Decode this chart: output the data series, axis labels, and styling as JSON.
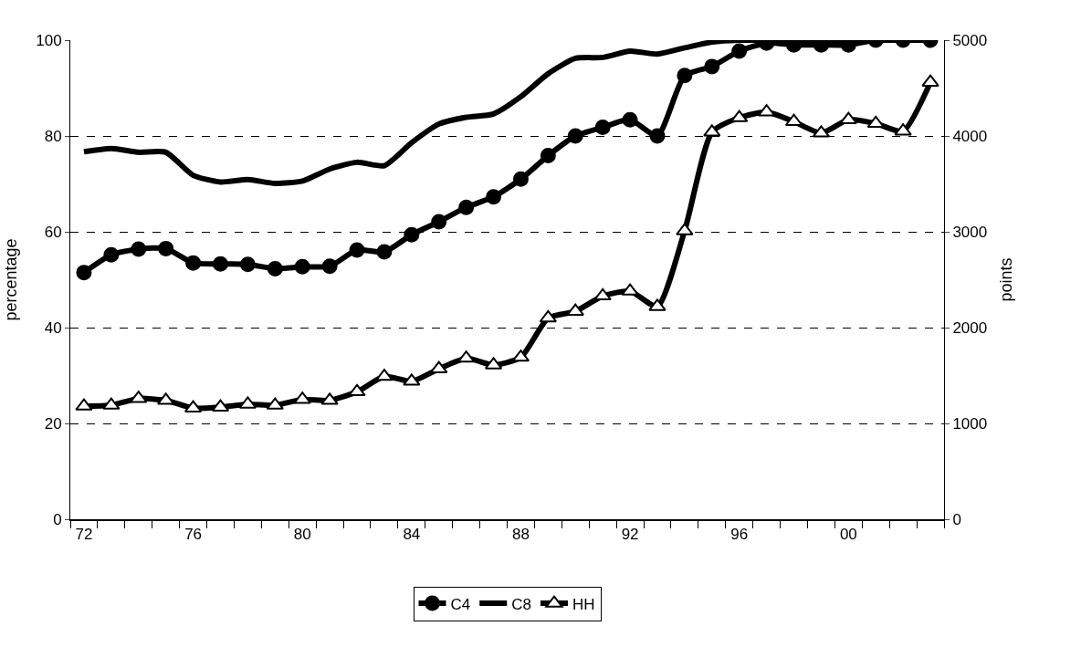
{
  "chart_data": {
    "type": "line",
    "categories": [
      "72",
      null,
      null,
      null,
      "76",
      null,
      null,
      null,
      "80",
      null,
      null,
      null,
      "84",
      null,
      null,
      null,
      "88",
      null,
      null,
      null,
      "92",
      null,
      null,
      null,
      "96",
      null,
      null,
      null,
      "00",
      null,
      null,
      null
    ],
    "series": [
      {
        "name": "C4",
        "color": "#000000",
        "marker": "circle",
        "values": [
          51.5,
          55.2,
          56.4,
          56.5,
          53.5,
          53.3,
          53.2,
          52.3,
          52.7,
          52.8,
          56.2,
          55.8,
          59.4,
          62.1,
          65.1,
          67.3,
          71.0,
          75.9,
          80.0,
          81.8,
          83.4,
          80.0,
          92.6,
          94.5,
          97.7,
          99.4,
          99.0,
          99.0,
          99.0,
          100,
          100,
          100
        ]
      },
      {
        "name": "C8",
        "color": "#000000",
        "marker": "none",
        "values": [
          76.7,
          77.4,
          76.6,
          76.6,
          71.8,
          70.4,
          70.9,
          70.1,
          70.6,
          73.1,
          74.5,
          73.8,
          78.6,
          82.5,
          83.9,
          84.6,
          88.2,
          93.0,
          96.2,
          96.4,
          97.7,
          97.1,
          98.4,
          99.6,
          100,
          100,
          100,
          100,
          100,
          100,
          100,
          100
        ]
      },
      {
        "name": "HH",
        "color": "#000000",
        "marker": "triangle",
        "axis": "y2",
        "values": [
          1180,
          1190,
          1260,
          1240,
          1160,
          1170,
          1200,
          1190,
          1250,
          1240,
          1330,
          1490,
          1440,
          1570,
          1680,
          1610,
          1690,
          2100,
          2170,
          2330,
          2380,
          2220,
          3010,
          4040,
          4190,
          4250,
          4150,
          4030,
          4170,
          4130,
          4050,
          4560
        ]
      }
    ],
    "ylabel": "percentage",
    "y2label": "points",
    "ylim": [
      0,
      100
    ],
    "yticks": [
      0,
      20,
      40,
      60,
      80,
      100
    ],
    "y2lim": [
      0,
      5000
    ],
    "y2ticks": [
      0,
      1000,
      2000,
      3000,
      4000,
      5000
    ],
    "grid": "y",
    "legend": "bottom"
  }
}
